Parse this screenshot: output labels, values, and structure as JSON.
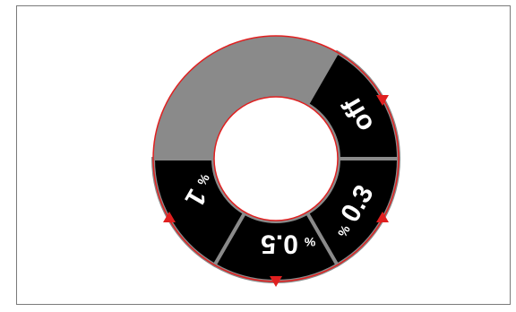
{
  "dial": {
    "ring_color": "#8a8a8a",
    "segment_color": "#000000",
    "outline_color": "#e02020",
    "marker_color": "#e02020",
    "settings": [
      {
        "id": "off",
        "value": "off",
        "unit": ""
      },
      {
        "id": "0-3",
        "value": "0.3",
        "unit": "%"
      },
      {
        "id": "0-5",
        "value": "0.5",
        "unit": "%"
      },
      {
        "id": "1",
        "value": "1",
        "unit": "%"
      }
    ]
  }
}
